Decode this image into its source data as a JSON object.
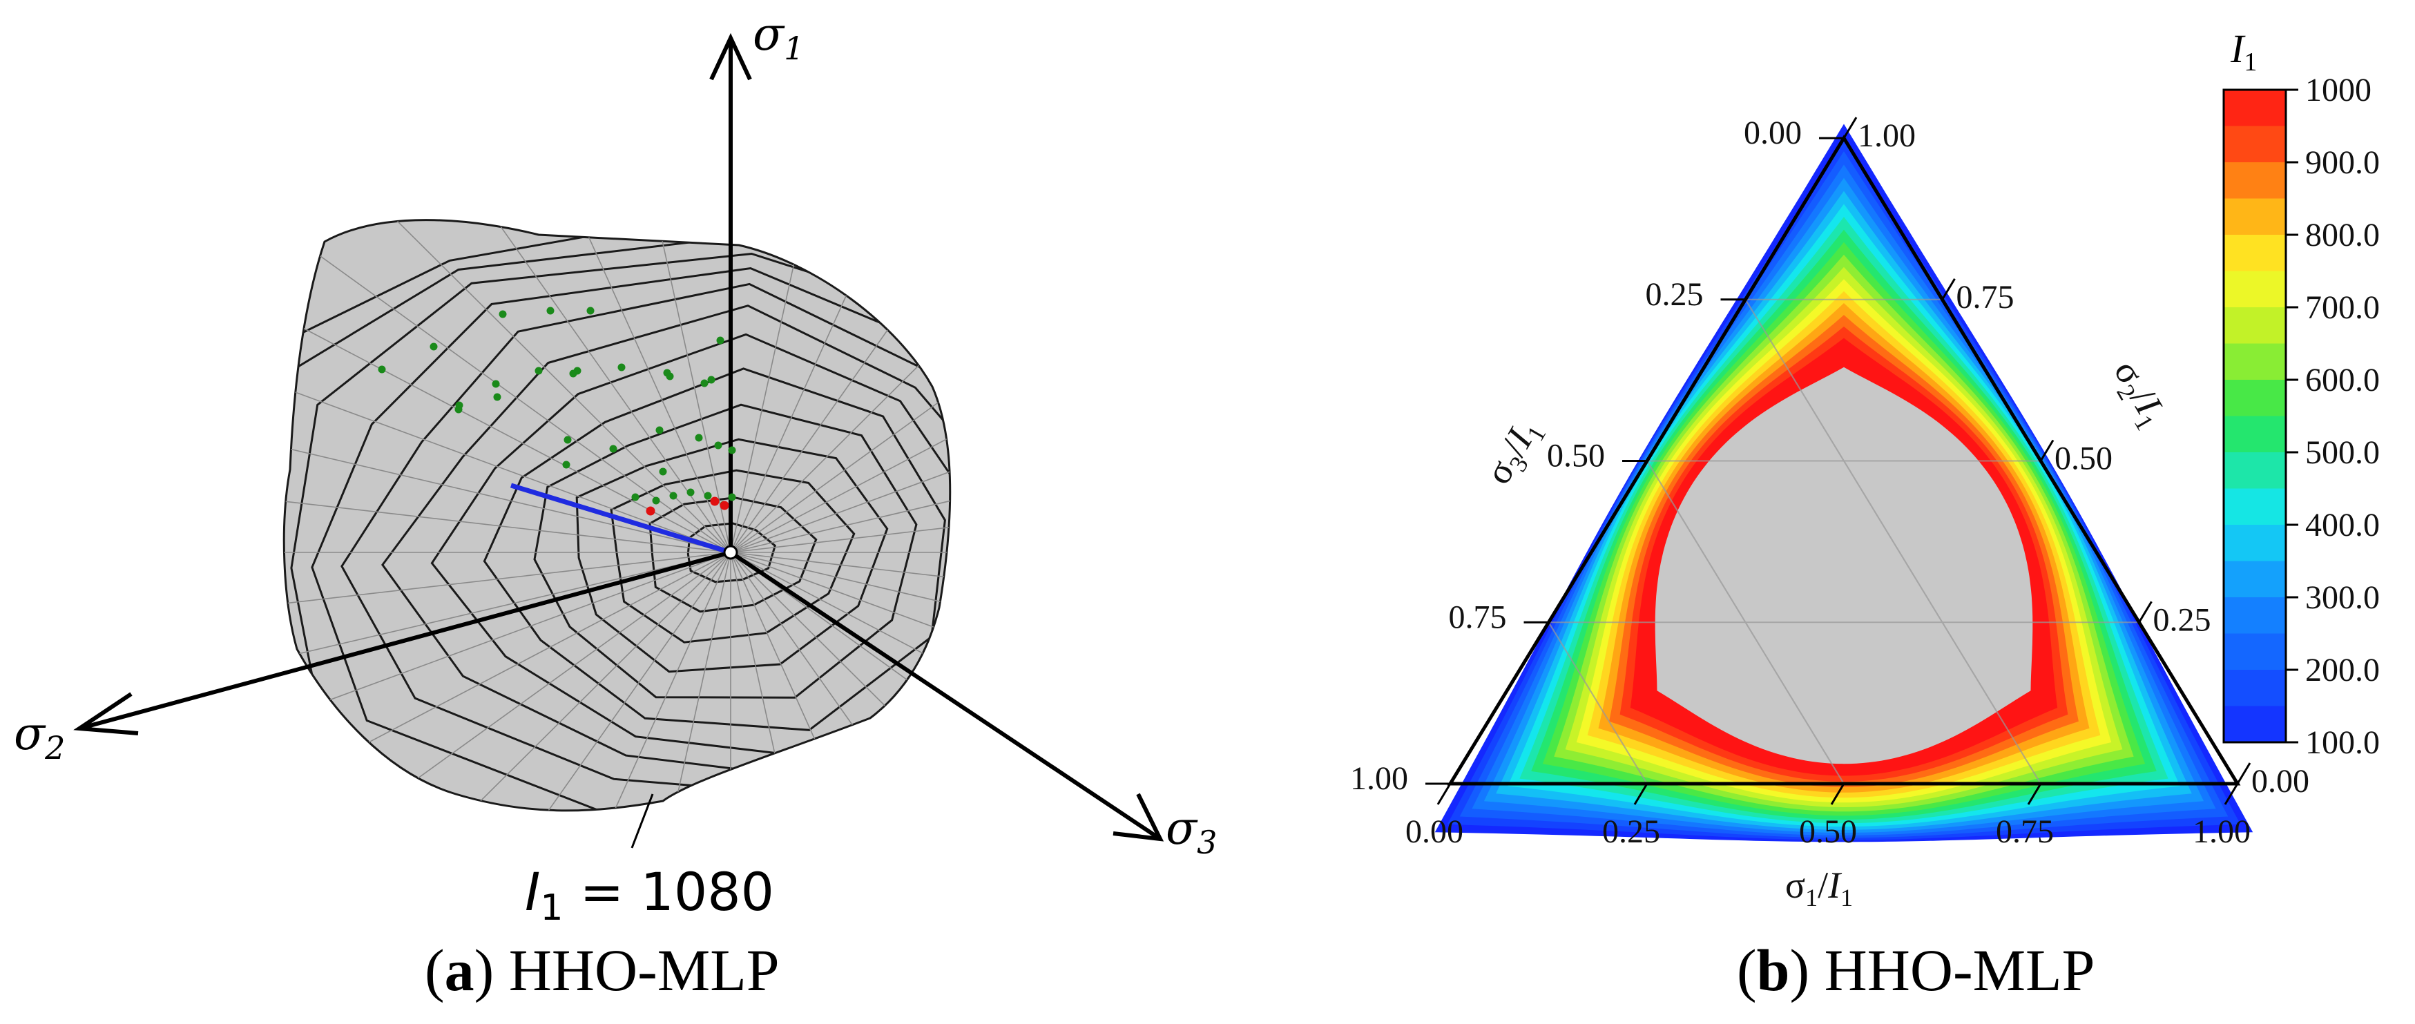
{
  "chart_data": [
    {
      "type": "surface3d",
      "panel": "a",
      "axes": [
        "σ1",
        "σ2",
        "σ3"
      ],
      "surface_label": "I1 = 1080",
      "caption_letter": "a",
      "caption_text": "HHO-MLP",
      "colors": {
        "surface": "#c8c8c8",
        "mesh": "#1a1a1a",
        "ray": "#1f2be0",
        "points_green": "#1a8a1a",
        "points_red": "#e01010"
      }
    },
    {
      "type": "ternary_contour",
      "panel": "b",
      "caption_letter": "b",
      "caption_text": "HHO-MLP",
      "axis_labels": {
        "bottom": "σ1/I1",
        "left": "σ3/I1",
        "right": "σ2/I1"
      },
      "tick_values": [
        "0.00",
        "0.25",
        "0.50",
        "0.75",
        "1.00"
      ],
      "colorbar": {
        "title": "I1",
        "ticks": [
          "100.0",
          "200.0",
          "300.0",
          "400.0",
          "500.0",
          "600.0",
          "700.0",
          "800.0",
          "900.0",
          "1000"
        ],
        "range": [
          100,
          1000
        ]
      }
    }
  ]
}
